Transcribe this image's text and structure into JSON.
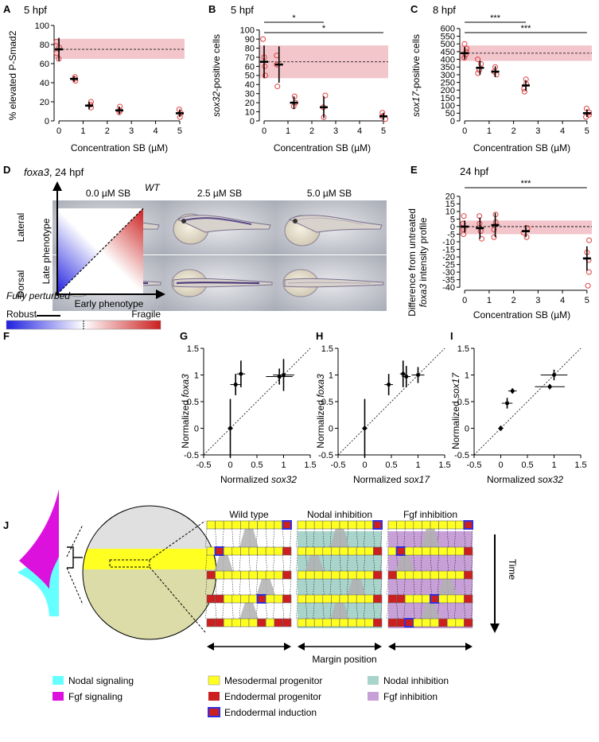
{
  "panels": {
    "A": {
      "letter": "A",
      "title": "5 hpf",
      "ylabel": "% elevated P-Smad2",
      "xlabel": "Concentration SB (µM)"
    },
    "B": {
      "letter": "B",
      "title": "5 hpf",
      "ylabel_italic": "sox32",
      "ylabel_rest": "-positive cells",
      "xlabel": "Concentration SB (µM)",
      "sig": [
        "*",
        "*"
      ]
    },
    "C": {
      "letter": "C",
      "title": "8 hpf",
      "ylabel_italic": "sox17",
      "ylabel_rest": "-positive cells",
      "xlabel": "Concentration SB (µM)",
      "sig": [
        "***",
        "***"
      ]
    },
    "D": {
      "letter": "D",
      "title_italic": "foxa3",
      "title_rest": ", 24 hpf",
      "columns": [
        "0.0 µM SB",
        "2.5 µM SB",
        "5.0 µM SB"
      ],
      "rows": [
        "Lateral",
        "Dorsal"
      ]
    },
    "E": {
      "letter": "E",
      "title": "24 hpf",
      "ylabel_line1": "Difference from untreated",
      "ylabel_line2_italic": "foxa3",
      "ylabel_line2_rest": " intensity profile",
      "xlabel": "Concentration SB (µM)",
      "sig": "***"
    },
    "F": {
      "letter": "F",
      "wt": "WT",
      "ylabel": "Late phenotype",
      "xlabel": "Early phenotype",
      "corner": "Fully perturbed",
      "bar_left": "Robust",
      "bar_right": "Fragile"
    },
    "G": {
      "letter": "G",
      "ylabel_pre": "Normalized ",
      "ylabel_italic": "foxa3",
      "xlabel_pre": "Normalized ",
      "xlabel_italic": "sox32"
    },
    "H": {
      "letter": "H",
      "ylabel_pre": "Normalized ",
      "ylabel_italic": "foxa3",
      "xlabel_pre": "Normalized ",
      "xlabel_italic": "sox17"
    },
    "I": {
      "letter": "I",
      "ylabel_pre": "Normalized ",
      "ylabel_italic": "sox17",
      "xlabel_pre": "Normalized ",
      "xlabel_italic": "sox32"
    },
    "J": {
      "letter": "J",
      "grid_titles": [
        "Wild type",
        "Nodal inhibition",
        "Fgf inhibition"
      ],
      "time": "Time",
      "margin": "Margin position",
      "legend": [
        "Nodal signaling",
        "Fgf signaling",
        "Mesodermal progenitor",
        "Endodermal progenitor",
        "Endodermal induction",
        "Nodal inhibition",
        "Fgf inhibition"
      ]
    }
  },
  "colors": {
    "marker": "#e04040",
    "band": "#f2c6cb",
    "robust": "#1f1fe0",
    "fragile": "#cc1f1f",
    "yellow": "#ffff22",
    "red": "#cc1f1f",
    "blue": "#3030e0",
    "nodal": "#66ffff",
    "fgf": "#dd11dd",
    "nodal_inh": "#a8d4cc",
    "fgf_inh": "#c8a0d8"
  },
  "chart_data": [
    {
      "id": "A",
      "type": "scatter",
      "x": [
        0,
        0.625,
        1.25,
        2.5,
        5
      ],
      "y": [
        75,
        44,
        16,
        11,
        8
      ],
      "yerr": [
        12,
        3,
        4,
        4,
        4
      ],
      "points": [
        [
          0,
          83
        ],
        [
          0,
          77
        ],
        [
          0,
          71
        ],
        [
          0,
          65
        ],
        [
          0.625,
          46
        ],
        [
          0.625,
          44
        ],
        [
          0.625,
          42
        ],
        [
          1.25,
          20
        ],
        [
          1.25,
          17
        ],
        [
          1.25,
          14
        ],
        [
          2.5,
          15
        ],
        [
          2.5,
          11
        ],
        [
          2.5,
          9
        ],
        [
          5,
          12
        ],
        [
          5,
          8
        ],
        [
          5,
          4
        ]
      ],
      "xlim": [
        -0.2,
        5.2
      ],
      "ylim": [
        0,
        100
      ],
      "xticks": [
        0,
        1,
        2,
        3,
        4,
        5
      ],
      "yticks": [
        0,
        20,
        40,
        60,
        80,
        100
      ],
      "band": [
        65,
        86
      ],
      "baseline": 75
    },
    {
      "id": "B",
      "type": "scatter",
      "x": [
        0,
        0.625,
        1.25,
        2.5,
        5
      ],
      "y": [
        65,
        62,
        20,
        15,
        5
      ],
      "yerr": [
        18,
        20,
        7,
        12,
        4
      ],
      "points": [
        [
          0,
          90
        ],
        [
          0,
          70
        ],
        [
          0,
          60
        ],
        [
          0,
          50
        ],
        [
          0.625,
          72
        ],
        [
          0.625,
          62
        ],
        [
          0.625,
          38
        ],
        [
          1.25,
          27
        ],
        [
          1.25,
          20
        ],
        [
          1.25,
          16
        ],
        [
          2.5,
          28
        ],
        [
          2.5,
          15
        ],
        [
          2.5,
          4
        ],
        [
          5,
          9
        ],
        [
          5,
          5
        ],
        [
          5,
          2
        ]
      ],
      "xlim": [
        -0.2,
        5.2
      ],
      "ylim": [
        0,
        105
      ],
      "xticks": [
        0,
        1,
        2,
        3,
        4,
        5
      ],
      "yticks": [
        0,
        10,
        20,
        30,
        40,
        50,
        60,
        70,
        80,
        90,
        100
      ],
      "band": [
        47,
        83
      ],
      "baseline": 65
    },
    {
      "id": "C",
      "type": "scatter",
      "x": [
        0,
        0.625,
        1.25,
        2.5,
        5
      ],
      "y": [
        440,
        345,
        320,
        230,
        50
      ],
      "yerr": [
        40,
        45,
        35,
        35,
        25
      ],
      "points": [
        [
          0,
          500
        ],
        [
          0,
          470
        ],
        [
          0,
          450
        ],
        [
          0,
          430
        ],
        [
          0,
          410
        ],
        [
          0.625,
          400
        ],
        [
          0.625,
          370
        ],
        [
          0.625,
          330
        ],
        [
          0.625,
          310
        ],
        [
          1.25,
          350
        ],
        [
          1.25,
          320
        ],
        [
          1.25,
          300
        ],
        [
          2.5,
          270
        ],
        [
          2.5,
          240
        ],
        [
          2.5,
          210
        ],
        [
          2.5,
          190
        ],
        [
          5,
          80
        ],
        [
          5,
          55
        ],
        [
          5,
          40
        ],
        [
          5,
          25
        ]
      ],
      "xlim": [
        -0.2,
        5.2
      ],
      "ylim": [
        0,
        620
      ],
      "xticks": [
        0,
        1,
        2,
        3,
        4,
        5
      ],
      "yticks": [
        0,
        50,
        100,
        150,
        200,
        250,
        300,
        350,
        400,
        450,
        500,
        550,
        600
      ],
      "band": [
        390,
        490
      ],
      "baseline": 440
    },
    {
      "id": "E",
      "type": "scatter",
      "x": [
        0,
        0.625,
        1.25,
        2.5,
        5
      ],
      "y": [
        0,
        -1,
        1,
        -3,
        -21
      ],
      "yerr": [
        4,
        7,
        8,
        4,
        8
      ],
      "points": [
        [
          0,
          7
        ],
        [
          0,
          2
        ],
        [
          0,
          -2
        ],
        [
          0,
          -5
        ],
        [
          0.625,
          7
        ],
        [
          0.625,
          2
        ],
        [
          0.625,
          -3
        ],
        [
          0.625,
          -8
        ],
        [
          1.25,
          8
        ],
        [
          1.25,
          3
        ],
        [
          1.25,
          -2
        ],
        [
          1.25,
          -7
        ],
        [
          2.5,
          -1
        ],
        [
          2.5,
          -4
        ],
        [
          2.5,
          -7
        ],
        [
          5,
          -9
        ],
        [
          5,
          -17
        ],
        [
          5,
          -22
        ],
        [
          5,
          -30
        ],
        [
          5,
          -39
        ]
      ],
      "xlim": [
        -0.2,
        5.2
      ],
      "ylim": [
        -42,
        22
      ],
      "xticks": [
        0,
        1,
        2,
        3,
        4,
        5
      ],
      "yticks": [
        -40,
        -35,
        -30,
        -25,
        -20,
        -15,
        -10,
        -5,
        0,
        5,
        10,
        15,
        20
      ],
      "band": [
        -5,
        4
      ],
      "baseline": 0
    },
    {
      "id": "G",
      "type": "scatter",
      "x": [
        0,
        0.1,
        0.2,
        0.92,
        1.0
      ],
      "y": [
        0,
        0.82,
        1.02,
        0.97,
        1.0
      ],
      "xerr": [
        0.05,
        0.1,
        0.08,
        0.25,
        0.2
      ],
      "yerr": [
        0.55,
        0.2,
        0.25,
        0.15,
        0.3
      ],
      "xlim": [
        -0.5,
        1.5
      ],
      "ylim": [
        -0.5,
        1.5
      ],
      "xticks": [
        -0.5,
        0,
        0.5,
        1,
        1.5
      ],
      "yticks": [
        -0.5,
        0,
        0.5,
        1,
        1.5
      ]
    },
    {
      "id": "H",
      "type": "scatter",
      "x": [
        0,
        0.45,
        0.72,
        0.78,
        1.0
      ],
      "y": [
        0,
        0.82,
        1.02,
        0.97,
        1.0
      ],
      "xerr": [
        0.05,
        0.08,
        0.06,
        0.08,
        0.12
      ],
      "yerr": [
        0.55,
        0.2,
        0.25,
        0.2,
        0.15
      ],
      "xlim": [
        -0.5,
        1.5
      ],
      "ylim": [
        -0.5,
        1.5
      ],
      "xticks": [
        -0.5,
        0,
        0.5,
        1,
        1.5
      ],
      "yticks": [
        -0.5,
        0,
        0.5,
        1,
        1.5
      ]
    },
    {
      "id": "I",
      "type": "scatter",
      "x": [
        0,
        0.12,
        0.22,
        0.92,
        1.0
      ],
      "y": [
        0,
        0.47,
        0.7,
        0.78,
        1.0
      ],
      "xerr": [
        0.05,
        0.1,
        0.08,
        0.28,
        0.25
      ],
      "yerr": [
        0.05,
        0.1,
        0.05,
        0.05,
        0.1
      ],
      "xlim": [
        -0.5,
        1.5
      ],
      "ylim": [
        -0.5,
        1.5
      ],
      "xticks": [
        -0.5,
        0,
        0.5,
        1,
        1.5
      ],
      "yticks": [
        -0.5,
        0,
        0.5,
        1,
        1.5
      ]
    }
  ]
}
